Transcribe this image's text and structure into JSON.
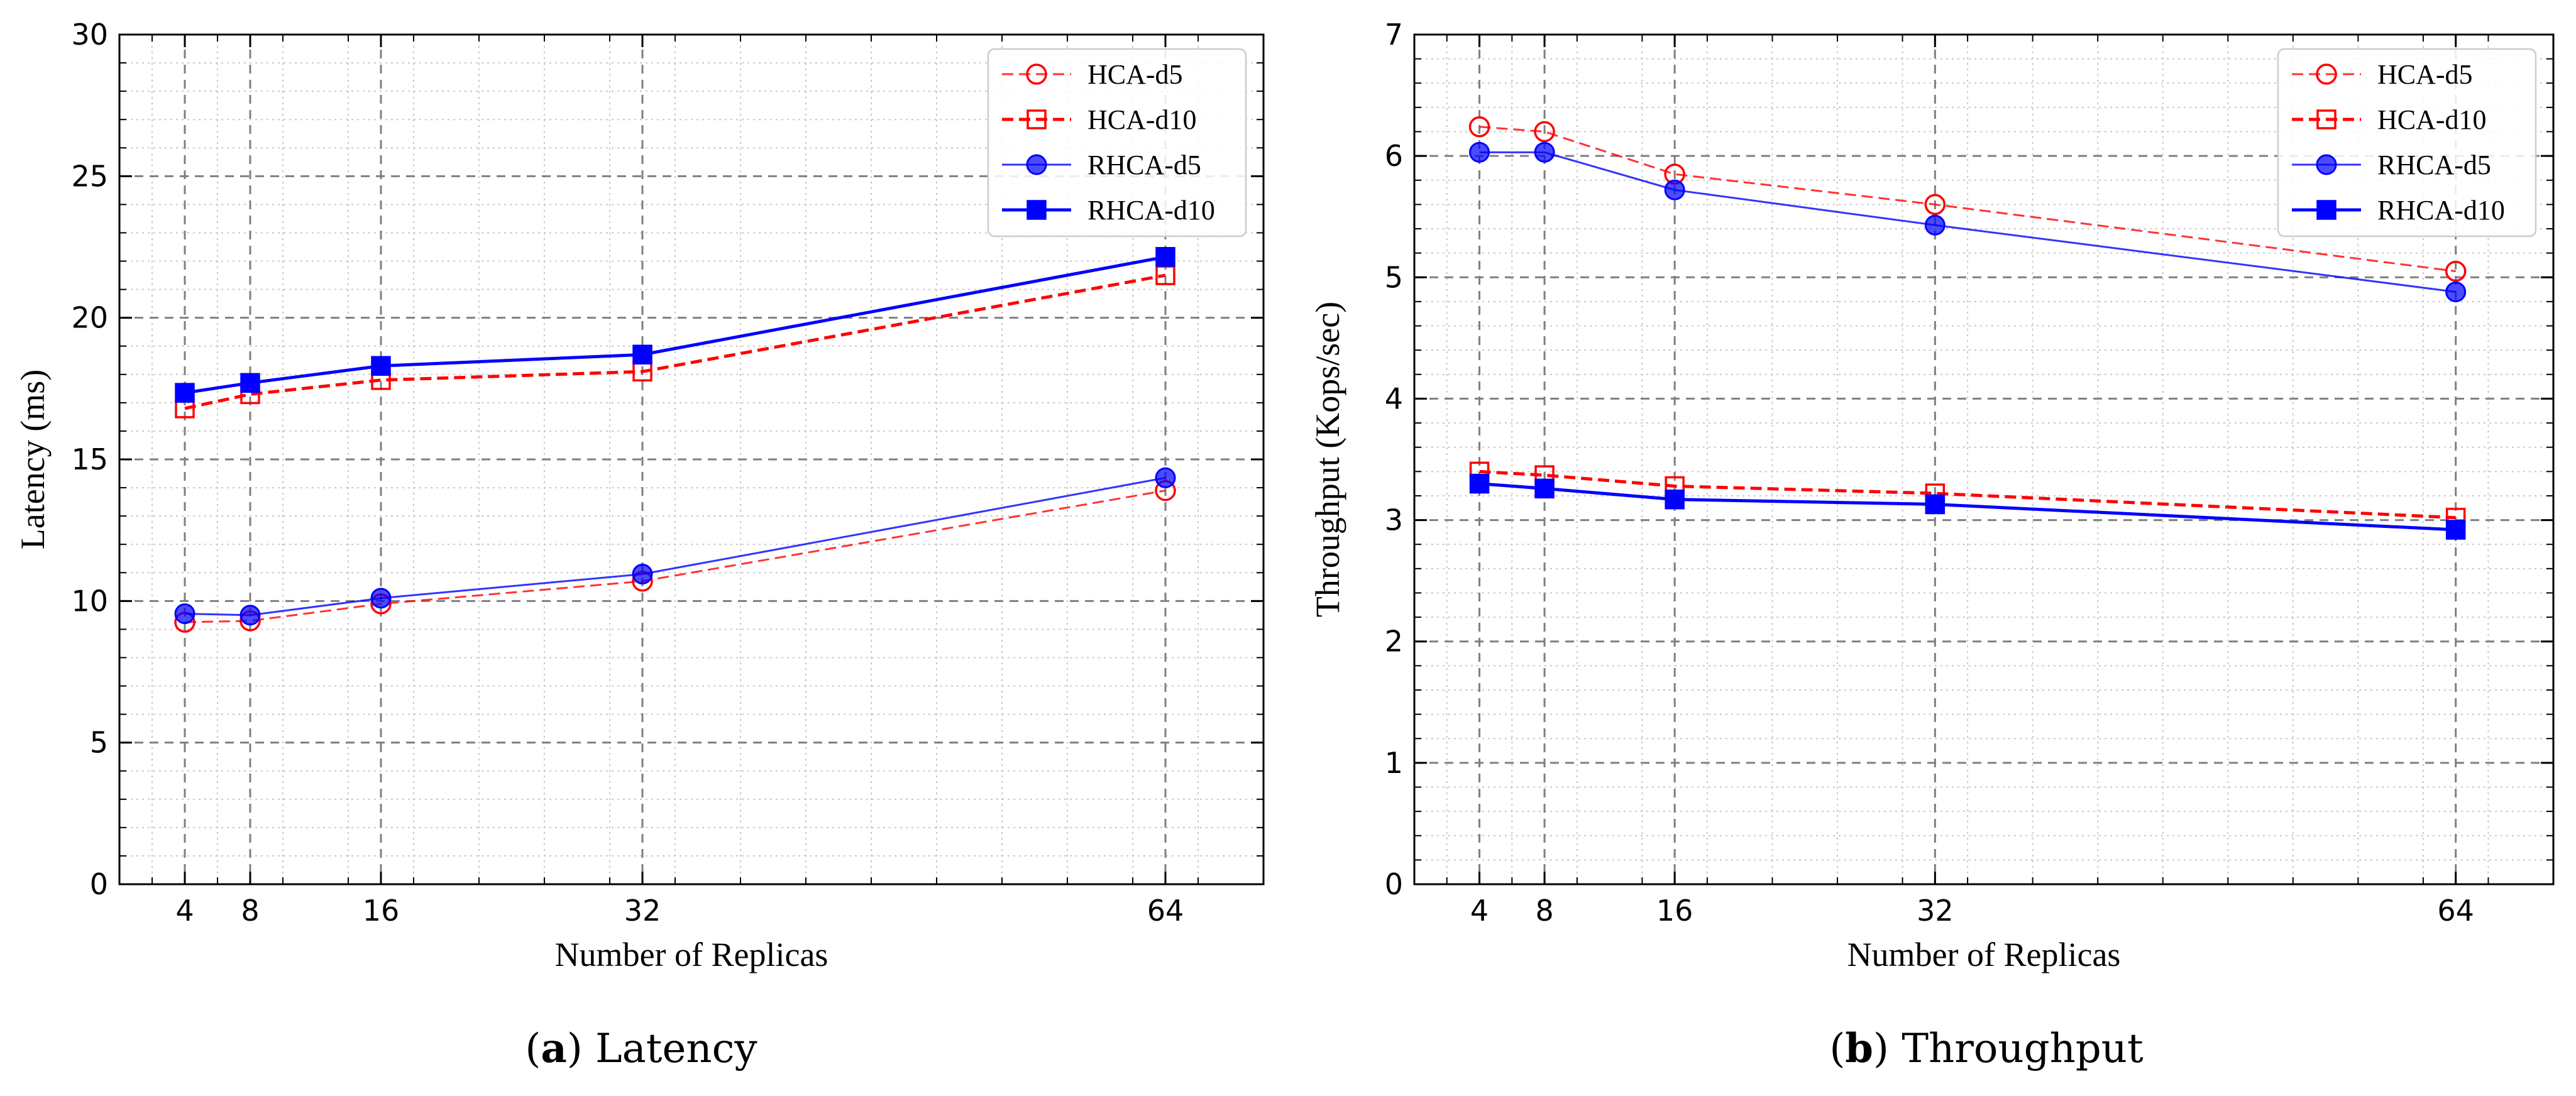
{
  "chart_data": [
    {
      "type": "line",
      "caption_prefix": "(",
      "caption_letter": "a",
      "caption_suffix": ") Latency",
      "xlabel": "Number of Replicas",
      "ylabel": "Latency (ms)",
      "x": [
        4,
        8,
        16,
        32,
        64
      ],
      "xticks": [
        4,
        8,
        16,
        32,
        64
      ],
      "xlim": [
        0,
        70
      ],
      "ylim": [
        0,
        30
      ],
      "yticks": [
        0,
        5,
        10,
        15,
        20,
        25,
        30
      ],
      "grid": true,
      "legend_position": "top-right",
      "series": [
        {
          "name": "HCA-d5",
          "values": [
            9.25,
            9.3,
            9.9,
            10.7,
            13.9
          ],
          "color": "#ff0000",
          "marker": "open-circle",
          "line": "dashed",
          "width": "thin"
        },
        {
          "name": "HCA-d10",
          "values": [
            16.8,
            17.3,
            17.8,
            18.1,
            21.5
          ],
          "color": "#ff0000",
          "marker": "open-square",
          "line": "dashed",
          "width": "thick"
        },
        {
          "name": "RHCA-d5",
          "values": [
            9.55,
            9.5,
            10.1,
            10.95,
            14.35
          ],
          "color": "#0000ff",
          "marker": "filled-circle",
          "line": "solid",
          "width": "thin"
        },
        {
          "name": "RHCA-d10",
          "values": [
            17.35,
            17.7,
            18.3,
            18.7,
            22.15
          ],
          "color": "#0000ff",
          "marker": "filled-square",
          "line": "solid",
          "width": "thick"
        }
      ]
    },
    {
      "type": "line",
      "caption_prefix": "(",
      "caption_letter": "b",
      "caption_suffix": ") Throughput",
      "xlabel": "Number of Replicas",
      "ylabel": "Throughput (Kops/sec)",
      "x": [
        4,
        8,
        16,
        32,
        64
      ],
      "xticks": [
        4,
        8,
        16,
        32,
        64
      ],
      "xlim": [
        0,
        70
      ],
      "ylim": [
        0,
        7
      ],
      "yticks": [
        0,
        1,
        2,
        3,
        4,
        5,
        6,
        7
      ],
      "grid": true,
      "legend_position": "top-right",
      "series": [
        {
          "name": "HCA-d5",
          "values": [
            6.24,
            6.2,
            5.85,
            5.6,
            5.05
          ],
          "color": "#ff0000",
          "marker": "open-circle",
          "line": "dashed",
          "width": "thin"
        },
        {
          "name": "HCA-d10",
          "values": [
            3.4,
            3.37,
            3.28,
            3.22,
            3.02
          ],
          "color": "#ff0000",
          "marker": "open-square",
          "line": "dashed",
          "width": "thick"
        },
        {
          "name": "RHCA-d5",
          "values": [
            6.03,
            6.03,
            5.72,
            5.43,
            4.88
          ],
          "color": "#0000ff",
          "marker": "filled-circle",
          "line": "solid",
          "width": "thin"
        },
        {
          "name": "RHCA-d10",
          "values": [
            3.3,
            3.26,
            3.17,
            3.13,
            2.92
          ],
          "color": "#0000ff",
          "marker": "filled-square",
          "line": "solid",
          "width": "thick"
        }
      ]
    }
  ]
}
